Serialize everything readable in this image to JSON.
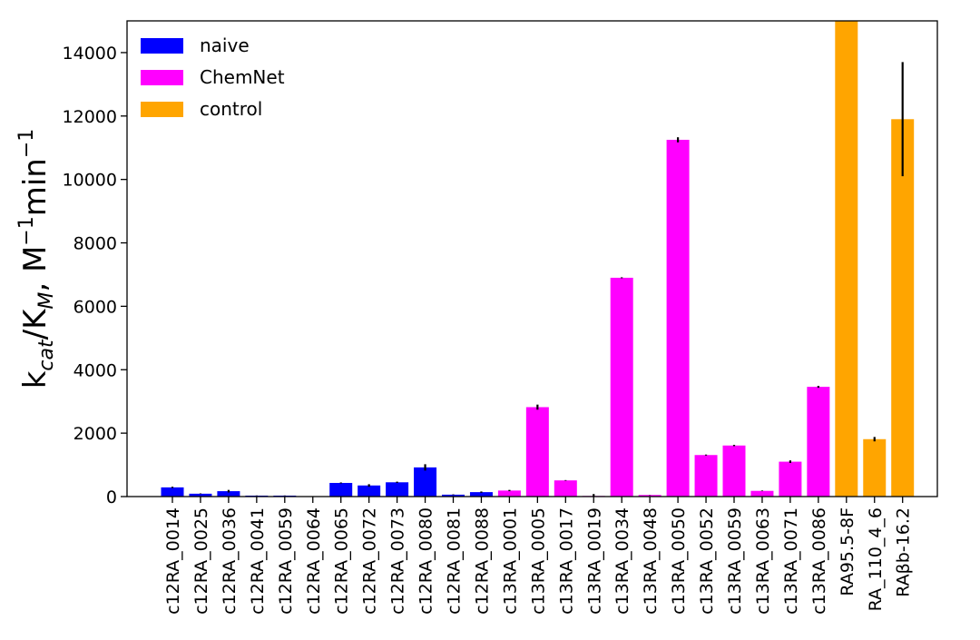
{
  "chart_data": {
    "type": "bar",
    "title": "",
    "xlabel": "",
    "ylabel": "k_cat/K_M, M^-1 min^-1",
    "ylim": [
      0,
      15000
    ],
    "yticks": [
      0,
      2000,
      4000,
      6000,
      8000,
      10000,
      12000,
      14000
    ],
    "ytick_labels": [
      "0",
      "2000",
      "4000",
      "6000",
      "8000",
      "10000",
      "12000",
      "14000"
    ],
    "grid": false,
    "legend_position": "top-left",
    "series": [
      {
        "name": "naive",
        "color": "#0000ff"
      },
      {
        "name": "ChemNet",
        "color": "#ff00ff"
      },
      {
        "name": "control",
        "color": "#ffa500"
      }
    ],
    "categories": [
      "c12RA_0014",
      "c12RA_0025",
      "c12RA_0036",
      "c12RA_0041",
      "c12RA_0059",
      "c12RA_0064",
      "c12RA_0065",
      "c12RA_0072",
      "c12RA_0073",
      "c12RA_0080",
      "c12RA_0081",
      "c12RA_0088",
      "c13RA_0001",
      "c13RA_0005",
      "c13RA_0017",
      "c13RA_0019",
      "c13RA_0034",
      "c13RA_0048",
      "c13RA_0050",
      "c13RA_0052",
      "c13RA_0059",
      "c13RA_0063",
      "c13RA_0071",
      "c13RA_0086",
      "RA95.5-8F",
      "RA_110_4_6",
      "RAβb-16.2"
    ],
    "category_series": [
      "naive",
      "naive",
      "naive",
      "naive",
      "naive",
      "naive",
      "naive",
      "naive",
      "naive",
      "naive",
      "naive",
      "naive",
      "ChemNet",
      "ChemNet",
      "ChemNet",
      "ChemNet",
      "ChemNet",
      "ChemNet",
      "ChemNet",
      "ChemNet",
      "ChemNet",
      "ChemNet",
      "ChemNet",
      "ChemNet",
      "control",
      "control",
      "control"
    ],
    "values": [
      290,
      90,
      170,
      30,
      30,
      10,
      430,
      350,
      450,
      920,
      60,
      140,
      190,
      2820,
      510,
      20,
      6900,
      50,
      11250,
      1310,
      1610,
      180,
      1100,
      3460,
      15000,
      1810,
      11900
    ],
    "errors": [
      20,
      10,
      40,
      5,
      5,
      5,
      15,
      40,
      20,
      100,
      10,
      20,
      20,
      80,
      10,
      60,
      15,
      5,
      80,
      15,
      20,
      10,
      40,
      30,
      0,
      70,
      1800
    ]
  }
}
